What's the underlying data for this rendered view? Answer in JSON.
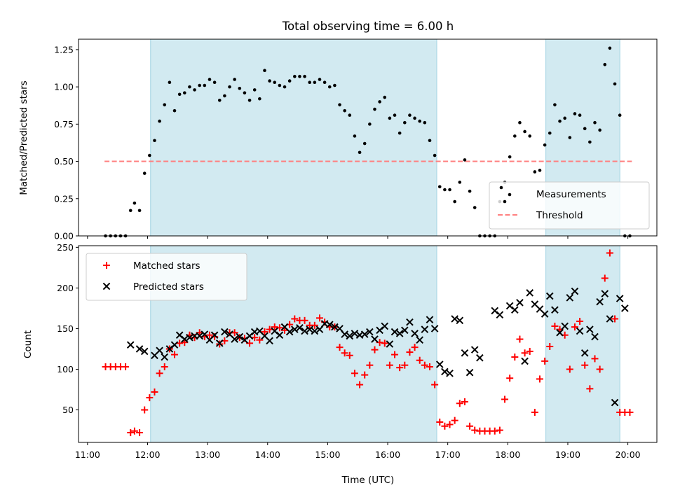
{
  "title": "Total observing time = 6.00 h",
  "colors": {
    "span": "#add8e6",
    "measurement": "#000000",
    "threshold": "#ff8080",
    "matched": "#ff0000",
    "predicted": "#000000"
  },
  "x_tick_labels": [
    "11:00",
    "12:00",
    "13:00",
    "14:00",
    "15:00",
    "16:00",
    "17:00",
    "18:00",
    "19:00",
    "20:00"
  ],
  "chart_data": [
    {
      "type": "scatter",
      "ylabel": "Matched/Predicted stars",
      "ylim": [
        0,
        1.32
      ],
      "y_ticks": [
        "0.00",
        "0.25",
        "0.50",
        "0.75",
        "1.00",
        "1.25"
      ],
      "xlim": [
        "10:51",
        "20:29"
      ],
      "shaded_spans": [
        [
          "12:03",
          "16:49"
        ],
        [
          "18:38",
          "19:52"
        ]
      ],
      "threshold": {
        "value": 0.5,
        "x_range": [
          "11:17",
          "20:04"
        ]
      },
      "legend": {
        "position": "lower right",
        "entries": [
          "Measurements",
          "Threshold"
        ]
      },
      "series": [
        {
          "name": "Measurements",
          "x": [
            "11:18",
            "11:23",
            "11:28",
            "11:33",
            "11:38",
            "11:43",
            "11:47",
            "11:52",
            "11:57",
            "12:02",
            "12:07",
            "12:12",
            "12:17",
            "12:22",
            "12:27",
            "12:32",
            "12:37",
            "12:42",
            "12:47",
            "12:52",
            "12:57",
            "13:02",
            "13:07",
            "13:12",
            "13:17",
            "13:22",
            "13:27",
            "13:32",
            "13:37",
            "13:42",
            "13:47",
            "13:52",
            "13:57",
            "14:02",
            "14:07",
            "14:12",
            "14:17",
            "14:22",
            "14:27",
            "14:32",
            "14:37",
            "14:42",
            "14:47",
            "14:52",
            "14:57",
            "15:02",
            "15:07",
            "15:12",
            "15:17",
            "15:22",
            "15:27",
            "15:32",
            "15:37",
            "15:42",
            "15:47",
            "15:52",
            "15:57",
            "16:02",
            "16:07",
            "16:12",
            "16:17",
            "16:22",
            "16:27",
            "16:32",
            "16:37",
            "16:42",
            "16:47",
            "16:52",
            "16:57",
            "17:02",
            "17:07",
            "17:12",
            "17:17",
            "17:22",
            "17:27",
            "17:32",
            "17:37",
            "17:42",
            "17:47",
            "17:52",
            "17:57",
            "18:02",
            "18:07",
            "18:12",
            "18:17",
            "18:22",
            "18:27",
            "18:32",
            "18:37",
            "18:42",
            "18:47",
            "18:52",
            "18:57",
            "19:02",
            "19:07",
            "19:12",
            "19:17",
            "19:22",
            "19:27",
            "19:32",
            "19:37",
            "19:42",
            "19:47",
            "19:52",
            "19:57",
            "20:02"
          ],
          "y": [
            0,
            0,
            0,
            0,
            0,
            0.17,
            0.22,
            0.17,
            0.42,
            0.54,
            0.64,
            0.77,
            0.88,
            1.03,
            0.84,
            0.95,
            0.96,
            1.0,
            0.98,
            1.01,
            1.01,
            1.05,
            1.03,
            0.91,
            0.94,
            1.0,
            1.05,
            0.99,
            0.96,
            0.91,
            0.98,
            0.92,
            1.11,
            1.04,
            1.03,
            1.01,
            1.0,
            1.04,
            1.07,
            1.07,
            1.07,
            1.03,
            1.03,
            1.05,
            1.03,
            1.0,
            1.01,
            0.88,
            0.84,
            0.81,
            0.67,
            0.56,
            0.62,
            0.75,
            0.85,
            0.9,
            0.93,
            0.79,
            0.81,
            0.69,
            0.76,
            0.81,
            0.79,
            0.77,
            0.76,
            0.64,
            0.54,
            0.33,
            0.31,
            0.31,
            0.23,
            0.36,
            0.51,
            0.3,
            0.19,
            0,
            0,
            0,
            0,
            0.23,
            0.36,
            0.53,
            0.67,
            0.76,
            0.7,
            0.67,
            0.43,
            0.44,
            0.61,
            0.69,
            0.88,
            0.77,
            0.79,
            0.66,
            0.82,
            0.81,
            0.72,
            0.63,
            0.76,
            0.71,
            1.15,
            1.26,
            1.02,
            0.81,
            0,
            0
          ]
        }
      ]
    },
    {
      "type": "scatter",
      "xlabel": "Time (UTC)",
      "ylabel": "Count",
      "ylim": [
        10,
        252
      ],
      "y_ticks": [
        "50",
        "100",
        "150",
        "200",
        "250"
      ],
      "xlim": [
        "10:51",
        "20:29"
      ],
      "shaded_spans": [
        [
          "12:03",
          "16:49"
        ],
        [
          "18:38",
          "19:52"
        ]
      ],
      "legend": {
        "position": "upper left",
        "entries": [
          "Matched stars",
          "Predicted stars"
        ]
      },
      "series": [
        {
          "name": "Matched stars",
          "marker": "plus",
          "x": [
            "11:18",
            "11:23",
            "11:28",
            "11:33",
            "11:38",
            "11:43",
            "11:47",
            "11:52",
            "11:57",
            "12:02",
            "12:07",
            "12:12",
            "12:17",
            "12:22",
            "12:27",
            "12:32",
            "12:37",
            "12:42",
            "12:47",
            "12:52",
            "12:57",
            "13:02",
            "13:07",
            "13:12",
            "13:17",
            "13:22",
            "13:27",
            "13:32",
            "13:37",
            "13:42",
            "13:47",
            "13:52",
            "13:57",
            "14:02",
            "14:07",
            "14:12",
            "14:17",
            "14:22",
            "14:27",
            "14:32",
            "14:37",
            "14:42",
            "14:47",
            "14:52",
            "14:57",
            "15:02",
            "15:07",
            "15:12",
            "15:17",
            "15:22",
            "15:27",
            "15:32",
            "15:37",
            "15:42",
            "15:47",
            "15:52",
            "15:57",
            "16:02",
            "16:07",
            "16:12",
            "16:17",
            "16:22",
            "16:27",
            "16:32",
            "16:37",
            "16:42",
            "16:47",
            "16:52",
            "16:57",
            "17:02",
            "17:07",
            "17:12",
            "17:17",
            "17:22",
            "17:27",
            "17:32",
            "17:37",
            "17:42",
            "17:47",
            "17:52",
            "17:57",
            "18:02",
            "18:07",
            "18:12",
            "18:17",
            "18:22",
            "18:27",
            "18:32",
            "18:37",
            "18:42",
            "18:47",
            "18:52",
            "18:57",
            "19:02",
            "19:07",
            "19:12",
            "19:17",
            "19:22",
            "19:27",
            "19:32",
            "19:37",
            "19:42",
            "19:47",
            "19:52",
            "19:57",
            "20:02"
          ],
          "y": [
            103,
            103,
            103,
            103,
            103,
            22,
            24,
            22,
            50,
            65,
            72,
            95,
            103,
            125,
            118,
            132,
            133,
            142,
            139,
            145,
            140,
            142,
            140,
            131,
            135,
            145,
            145,
            139,
            138,
            132,
            139,
            136,
            146,
            149,
            152,
            151,
            148,
            155,
            162,
            160,
            160,
            154,
            154,
            163,
            158,
            152,
            152,
            127,
            120,
            117,
            95,
            81,
            93,
            105,
            124,
            133,
            132,
            105,
            118,
            102,
            105,
            121,
            127,
            111,
            105,
            103,
            81,
            35,
            30,
            32,
            37,
            58,
            60,
            30,
            25,
            24,
            24,
            24,
            24,
            25,
            63,
            89,
            115,
            137,
            120,
            122,
            47,
            88,
            110,
            128,
            153,
            149,
            142,
            100,
            152,
            159,
            105,
            76,
            113,
            100,
            212,
            243,
            162,
            47,
            47,
            47
          ]
        },
        {
          "name": "Predicted stars",
          "marker": "x",
          "x": [
            "11:43",
            "11:52",
            "11:57",
            "12:07",
            "12:12",
            "12:17",
            "12:22",
            "12:27",
            "12:32",
            "12:37",
            "12:42",
            "12:47",
            "12:52",
            "12:57",
            "13:02",
            "13:07",
            "13:12",
            "13:17",
            "13:22",
            "13:27",
            "13:32",
            "13:37",
            "13:42",
            "13:47",
            "13:52",
            "13:57",
            "14:02",
            "14:07",
            "14:12",
            "14:17",
            "14:22",
            "14:27",
            "14:32",
            "14:37",
            "14:42",
            "14:47",
            "14:52",
            "14:57",
            "15:02",
            "15:07",
            "15:12",
            "15:17",
            "15:22",
            "15:27",
            "15:32",
            "15:37",
            "15:42",
            "15:47",
            "15:52",
            "15:57",
            "16:02",
            "16:07",
            "16:12",
            "16:17",
            "16:22",
            "16:27",
            "16:32",
            "16:37",
            "16:42",
            "16:47",
            "16:52",
            "16:57",
            "17:02",
            "17:07",
            "17:12",
            "17:17",
            "17:22",
            "17:27",
            "17:32",
            "17:47",
            "17:52",
            "18:02",
            "18:07",
            "18:12",
            "18:17",
            "18:22",
            "18:27",
            "18:32",
            "18:37",
            "18:42",
            "18:47",
            "18:52",
            "18:57",
            "19:02",
            "19:07",
            "19:12",
            "19:17",
            "19:22",
            "19:27",
            "19:32",
            "19:37",
            "19:42",
            "19:47",
            "19:52",
            "19:57"
          ],
          "y": [
            130,
            125,
            122,
            117,
            123,
            115,
            125,
            130,
            142,
            137,
            139,
            141,
            141,
            143,
            136,
            142,
            132,
            146,
            143,
            137,
            140,
            136,
            141,
            146,
            147,
            141,
            135,
            147,
            142,
            152,
            146,
            149,
            151,
            147,
            149,
            147,
            149,
            156,
            155,
            152,
            150,
            143,
            141,
            144,
            142,
            143,
            146,
            137,
            148,
            153,
            131,
            146,
            144,
            148,
            158,
            144,
            136,
            149,
            161,
            150,
            106,
            97,
            95,
            162,
            160,
            120,
            96,
            124,
            114,
            172,
            167,
            178,
            173,
            182,
            110,
            194,
            180,
            174,
            168,
            190,
            173,
            145,
            153,
            188,
            196,
            147,
            120,
            149,
            140,
            183,
            193,
            162,
            59,
            187,
            175
          ]
        }
      ]
    }
  ]
}
